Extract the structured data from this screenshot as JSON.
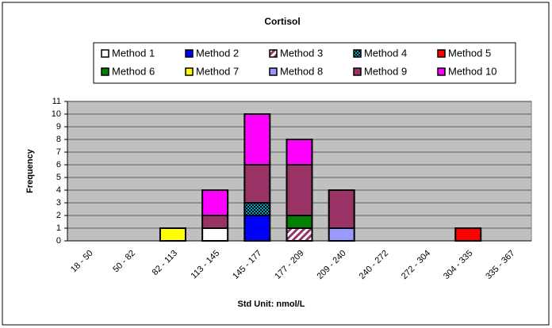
{
  "chart_data": {
    "type": "bar",
    "stacked": true,
    "title": "Cortisol",
    "x_label": "Std Unit: nmol/L",
    "y_label": "Frequency",
    "categories": [
      "18 - 50",
      "50 - 82",
      "82 - 113",
      "113 - 145",
      "145 - 177",
      "177 - 209",
      "209 - 240",
      "240 - 272",
      "272 - 304",
      "304 - 335",
      "335 - 367"
    ],
    "series": [
      {
        "name": "Method 1",
        "color": "#ffffff",
        "values": [
          0,
          0,
          0,
          1,
          0,
          0,
          0,
          0,
          0,
          0,
          0
        ]
      },
      {
        "name": "Method 2",
        "color": "#0000ff",
        "values": [
          0,
          0,
          0,
          0,
          2,
          0,
          0,
          0,
          0,
          0,
          0
        ]
      },
      {
        "name": "Method 3",
        "color": "#ffffff",
        "pattern": "hatch",
        "values": [
          0,
          0,
          0,
          0,
          0,
          1,
          0,
          0,
          0,
          0,
          0
        ]
      },
      {
        "name": "Method 4",
        "color": "#00a0c0",
        "pattern": "checker",
        "values": [
          0,
          0,
          0,
          0,
          1,
          0,
          0,
          0,
          0,
          0,
          0
        ]
      },
      {
        "name": "Method 5",
        "color": "#ff0000",
        "values": [
          0,
          0,
          0,
          0,
          0,
          0,
          0,
          0,
          0,
          1,
          0
        ]
      },
      {
        "name": "Method 6",
        "color": "#008000",
        "values": [
          0,
          0,
          0,
          0,
          0,
          1,
          0,
          0,
          0,
          0,
          0
        ]
      },
      {
        "name": "Method 7",
        "color": "#ffff00",
        "values": [
          0,
          0,
          1,
          0,
          0,
          0,
          0,
          0,
          0,
          0,
          0
        ]
      },
      {
        "name": "Method 8",
        "color": "#9999ff",
        "values": [
          0,
          0,
          0,
          0,
          0,
          0,
          1,
          0,
          0,
          0,
          0
        ]
      },
      {
        "name": "Method 9",
        "color": "#993366",
        "values": [
          0,
          0,
          0,
          1,
          3,
          4,
          3,
          0,
          0,
          0,
          0
        ]
      },
      {
        "name": "Method 10",
        "color": "#ff00ff",
        "values": [
          0,
          0,
          0,
          2,
          4,
          2,
          0,
          0,
          0,
          0,
          0
        ]
      }
    ],
    "ylim": [
      0,
      11
    ],
    "yticks": [
      0,
      1,
      2,
      3,
      4,
      5,
      6,
      7,
      8,
      9,
      10,
      11
    ],
    "grid": true,
    "legend": "top"
  }
}
